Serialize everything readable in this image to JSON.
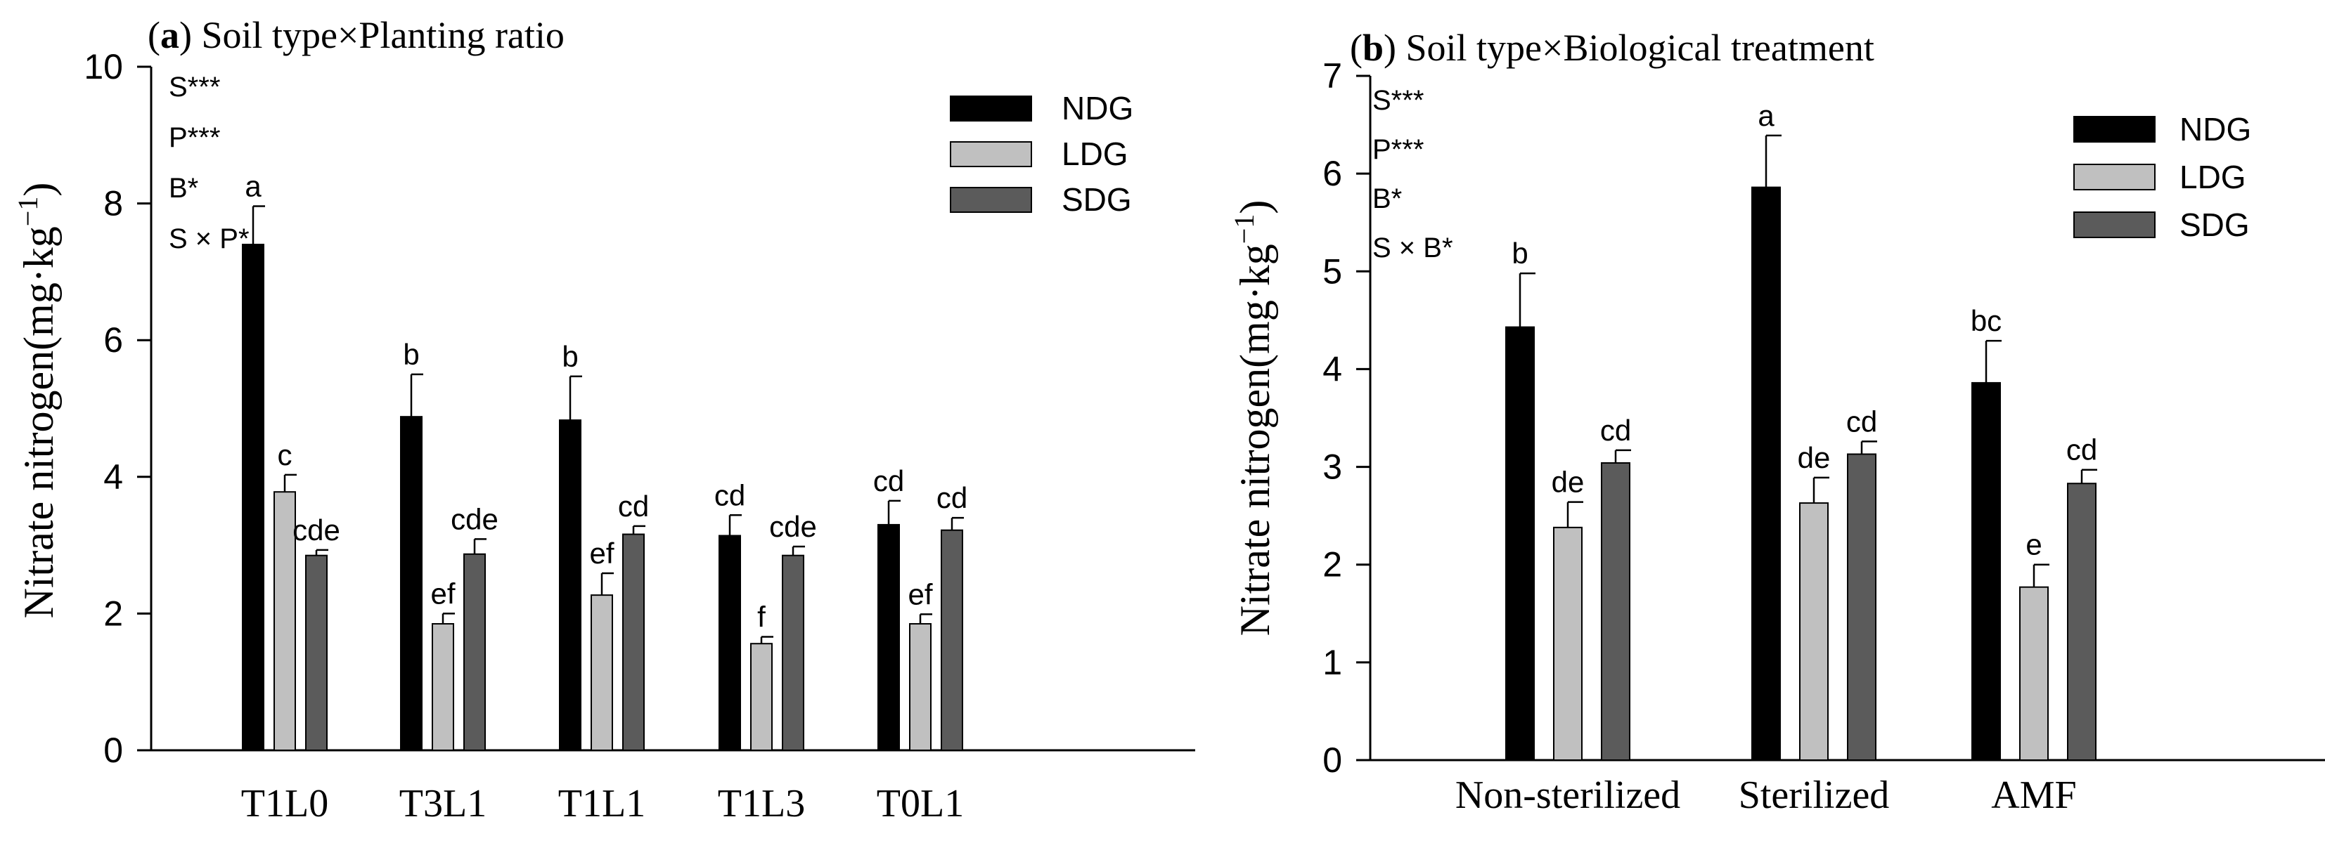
{
  "chart_data": [
    {
      "type": "bar",
      "panel_tag": "a",
      "title": "Soil type×Planting ratio",
      "xlabel": "",
      "ylabel_main": "Nitrate nitrogen(mg·kg",
      "ylabel_sup": "−1",
      "ylabel_close": ")",
      "ylim": [
        0,
        10
      ],
      "yticks": [
        "0",
        "2",
        "4",
        "6",
        "8",
        "10"
      ],
      "categories": [
        "T1L0",
        "T3L1",
        "T1L1",
        "T1L3",
        "T0L1"
      ],
      "series": [
        {
          "name": "NDG",
          "color": "#000000",
          "values": [
            7.4,
            4.88,
            4.83,
            3.14,
            3.3
          ],
          "errors": [
            0.56,
            0.62,
            0.64,
            0.3,
            0.35
          ],
          "letters": [
            "a",
            "b",
            "b",
            "cd",
            "cd"
          ]
        },
        {
          "name": "LDG",
          "color": "#c0c0c0",
          "values": [
            3.78,
            1.85,
            2.27,
            1.56,
            1.85
          ],
          "errors": [
            0.25,
            0.15,
            0.32,
            0.1,
            0.14
          ],
          "letters": [
            "c",
            "ef",
            "ef",
            "f",
            "ef"
          ]
        },
        {
          "name": "SDG",
          "color": "#5b5b5b",
          "values": [
            2.85,
            2.87,
            3.16,
            2.85,
            3.22
          ],
          "errors": [
            0.08,
            0.22,
            0.12,
            0.13,
            0.18
          ],
          "letters": [
            "cde",
            "cde",
            "cd",
            "cde",
            "cd"
          ]
        }
      ],
      "significance": [
        "S***",
        "P***",
        "B*",
        "S × P*"
      ],
      "legend_position": "top-right"
    },
    {
      "type": "bar",
      "panel_tag": "b",
      "title": "Soil type×Biological treatment",
      "xlabel": "",
      "ylabel_main": "Nitrate nitrogen(mg·kg",
      "ylabel_sup": "−1",
      "ylabel_close": ")",
      "ylim": [
        0,
        7
      ],
      "yticks": [
        "0",
        "1",
        "2",
        "3",
        "4",
        "5",
        "6",
        "7"
      ],
      "categories": [
        "Non-sterilized",
        "Sterilized",
        "AMF"
      ],
      "series": [
        {
          "name": "NDG",
          "color": "#000000",
          "values": [
            4.43,
            5.86,
            3.86
          ],
          "errors": [
            0.55,
            0.53,
            0.43
          ],
          "letters": [
            "b",
            "a",
            "bc"
          ]
        },
        {
          "name": "LDG",
          "color": "#c0c0c0",
          "values": [
            2.38,
            2.63,
            1.77
          ],
          "errors": [
            0.26,
            0.26,
            0.23
          ],
          "letters": [
            "de",
            "de",
            "e"
          ]
        },
        {
          "name": "SDG",
          "color": "#5b5b5b",
          "values": [
            3.04,
            3.13,
            2.83
          ],
          "errors": [
            0.13,
            0.13,
            0.14
          ],
          "letters": [
            "cd",
            "cd",
            "cd"
          ]
        }
      ],
      "significance": [
        "S***",
        "P***",
        "B*",
        "S × B*"
      ],
      "legend_position": "top-right"
    }
  ]
}
